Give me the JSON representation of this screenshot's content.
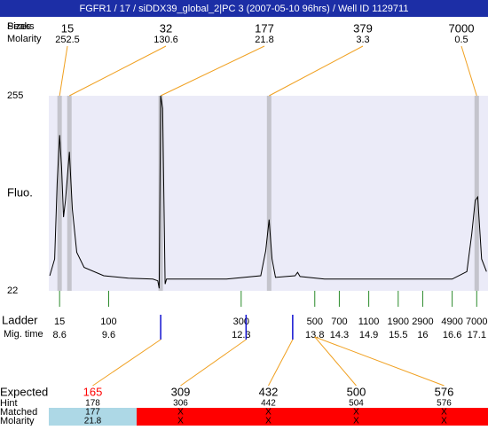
{
  "header": {
    "title": "FGFR1 / 17 / siDDX39_global_2|PC 3 (2007-05-10 96hrs) / Well ID 1129711"
  },
  "peaks": {
    "label_a": "Peaks",
    "label_b": "Sizes",
    "molarity_label": "Molarity",
    "items": [
      {
        "size": 15,
        "molarity": 252.5,
        "time": 8.6
      },
      {
        "size": 32,
        "molarity": 130.6,
        "time": 8.8
      },
      {
        "size": 177,
        "molarity": 21.8,
        "time": 10.66
      },
      {
        "size": 379,
        "molarity": 3.3,
        "time": 12.87
      },
      {
        "size": 7000,
        "molarity": 0.5,
        "time": 17.1
      }
    ]
  },
  "plot": {
    "y_label": "Fluo.",
    "ylim": [
      22,
      255
    ],
    "yticks": [
      22,
      255
    ],
    "xlim": [
      8.38,
      17.33
    ],
    "background": "#ebebf8",
    "band_color": "#c4c4cc",
    "trace": {
      "x": [
        8.4,
        8.5,
        8.55,
        8.6,
        8.64,
        8.68,
        8.72,
        8.8,
        8.86,
        8.95,
        9.1,
        9.5,
        10.0,
        10.5,
        10.6,
        10.63,
        10.66,
        10.7,
        10.75,
        10.78,
        11.0,
        12.0,
        12.7,
        12.8,
        12.87,
        12.93,
        13.0,
        13.4,
        13.45,
        13.5,
        14.0,
        16.6,
        16.9,
        17.0,
        17.07,
        17.12,
        17.2,
        17.3
      ],
      "y": [
        40,
        60,
        150,
        208,
        170,
        110,
        130,
        188,
        120,
        68,
        50,
        40,
        37,
        36,
        34,
        25,
        255,
        240,
        30,
        36,
        36,
        36,
        40,
        70,
        107,
        60,
        38,
        40,
        44,
        39,
        36,
        36,
        45,
        90,
        130,
        134,
        60,
        45
      ]
    }
  },
  "ladder": {
    "label": "Ladder",
    "time_label": "Mig. time",
    "color": "#2a8a2a",
    "items": [
      {
        "size": 15,
        "time": 8.6
      },
      {
        "size": 100,
        "time": 9.6
      },
      {
        "size": 300,
        "time": 12.3
      },
      {
        "size": 500,
        "time": 13.8
      },
      {
        "size": 700,
        "time": 14.3
      },
      {
        "size": 1100,
        "time": 14.9
      },
      {
        "size": 1900,
        "time": 15.5
      },
      {
        "size": 2900,
        "time": 16
      },
      {
        "size": 4900,
        "time": 16.6
      },
      {
        "size": 7000,
        "time": 17.1
      }
    ]
  },
  "matching": {
    "labels": [
      "Expected",
      "Hint",
      "Matched",
      "Molarity"
    ],
    "columns": [
      {
        "expected": 165,
        "hint": 178,
        "matched": 177,
        "molarity": 21.8,
        "hint_time": 10.66,
        "expected_color": "#ff0000",
        "fill": "#add8e6"
      },
      {
        "expected": 309,
        "hint": 306,
        "matched": "X",
        "molarity": "X",
        "hint_time": 12.4,
        "expected_color": "#000000",
        "fill": "#ff0000"
      },
      {
        "expected": 432,
        "hint": 442,
        "matched": "X",
        "molarity": "X",
        "hint_time": 13.35,
        "expected_color": "#000000",
        "fill": "#ff0000"
      },
      {
        "expected": 500,
        "hint": 504,
        "matched": "X",
        "molarity": "X",
        "hint_time": null,
        "expected_color": "#000000",
        "fill": "#ff0000"
      },
      {
        "expected": 576,
        "hint": 576,
        "matched": "X",
        "molarity": "X",
        "hint_time": null,
        "expected_color": "#000000",
        "fill": "#ff0000"
      }
    ]
  }
}
